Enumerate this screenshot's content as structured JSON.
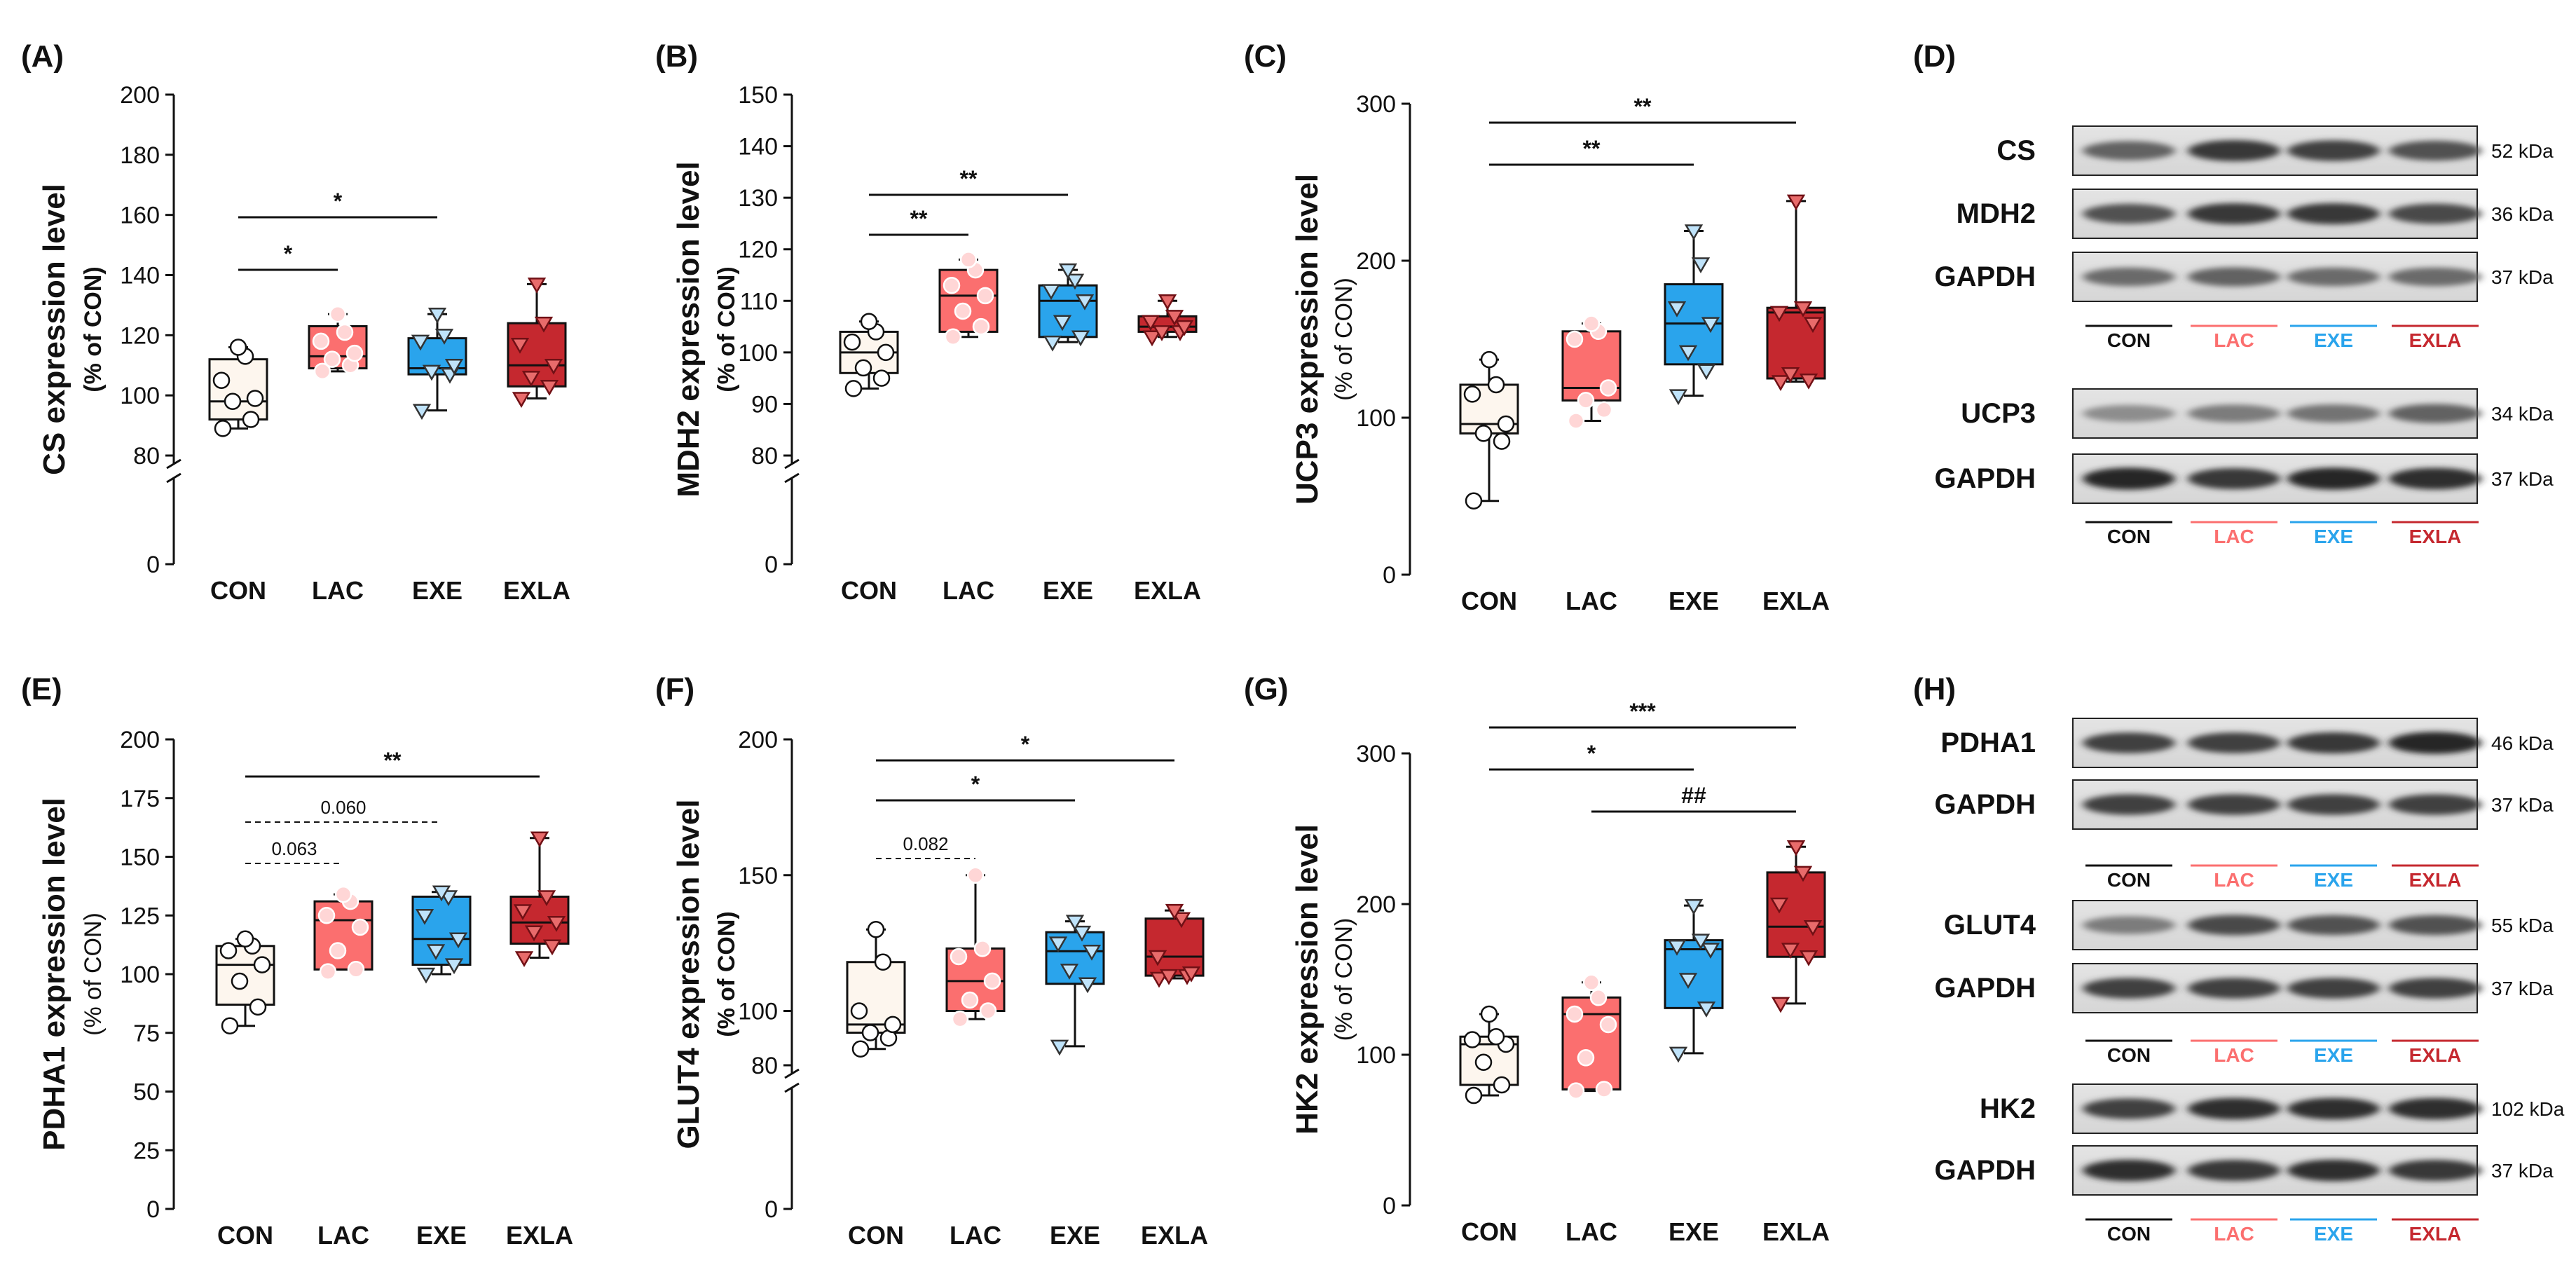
{
  "colors": {
    "CON": "#FDF6EE",
    "LAC": "#FB6F6F",
    "EXE": "#2AA4EC",
    "EXLA": "#C5282F"
  },
  "groups": [
    "CON",
    "LAC",
    "EXE",
    "EXLA"
  ],
  "chart_data": [
    {
      "type": "box",
      "panel": "(A)",
      "ylabel": "CS expression level",
      "ylabel2": "(% of CON)",
      "ylim": [
        0,
        200
      ],
      "yticks": [
        0,
        80,
        100,
        120,
        140,
        160,
        180,
        200
      ],
      "axis_break": [
        0,
        80
      ],
      "categories": [
        "CON",
        "LAC",
        "EXE",
        "EXLA"
      ],
      "boxes": [
        {
          "min": 89,
          "q1": 92,
          "median": 98,
          "q3": 112,
          "max": 116
        },
        {
          "min": 108,
          "q1": 109,
          "median": 113,
          "q3": 123,
          "max": 127
        },
        {
          "min": 95,
          "q1": 107,
          "median": 109,
          "q3": 119,
          "max": 127
        },
        {
          "min": 99,
          "q1": 103,
          "median": 110,
          "q3": 124,
          "max": 137
        }
      ],
      "points": [
        [
          89,
          92,
          98,
          99,
          105,
          113,
          116
        ],
        [
          108,
          110,
          112,
          114,
          118,
          121,
          127
        ],
        [
          95,
          107,
          108,
          110,
          118,
          120,
          127
        ],
        [
          99,
          103,
          106,
          110,
          117,
          124,
          137
        ]
      ],
      "brackets": [
        {
          "from": 0,
          "to": 1,
          "label": "*",
          "dashed": false
        },
        {
          "from": 0,
          "to": 2,
          "label": "*",
          "dashed": false
        }
      ]
    },
    {
      "type": "box",
      "panel": "(B)",
      "ylabel": "MDH2 expression level",
      "ylabel2": "(% of CON)",
      "ylim": [
        0,
        150
      ],
      "yticks": [
        0,
        80,
        90,
        100,
        110,
        120,
        130,
        140,
        150
      ],
      "axis_break": [
        0,
        80
      ],
      "categories": [
        "CON",
        "LAC",
        "EXE",
        "EXLA"
      ],
      "boxes": [
        {
          "min": 93,
          "q1": 96,
          "median": 100,
          "q3": 104,
          "max": 106
        },
        {
          "min": 103,
          "q1": 104,
          "median": 111,
          "q3": 116,
          "max": 118
        },
        {
          "min": 102,
          "q1": 103,
          "median": 110,
          "q3": 113,
          "max": 116
        },
        {
          "min": 103,
          "q1": 104,
          "median": 105,
          "q3": 107,
          "max": 110
        }
      ],
      "points": [
        [
          93,
          95,
          97,
          100,
          102,
          104,
          106
        ],
        [
          103,
          105,
          108,
          111,
          113,
          116,
          118
        ],
        [
          102,
          103,
          106,
          110,
          112,
          114,
          116
        ],
        [
          103,
          104,
          104,
          105,
          106,
          107,
          110
        ]
      ],
      "brackets": [
        {
          "from": 0,
          "to": 1,
          "label": "**",
          "dashed": false
        },
        {
          "from": 0,
          "to": 2,
          "label": "**",
          "dashed": false
        }
      ]
    },
    {
      "type": "box",
      "panel": "(C)",
      "ylabel": "UCP3 expression level",
      "ylabel2": "(% of CON)",
      "ylim": [
        0,
        300
      ],
      "yticks": [
        0,
        100,
        200,
        300
      ],
      "axis_break": null,
      "categories": [
        "CON",
        "LAC",
        "EXE",
        "EXLA"
      ],
      "boxes": [
        {
          "min": 47,
          "q1": 90,
          "median": 96,
          "q3": 121,
          "max": 137
        },
        {
          "min": 98,
          "q1": 111,
          "median": 119,
          "q3": 155,
          "max": 160
        },
        {
          "min": 114,
          "q1": 134,
          "median": 160,
          "q3": 185,
          "max": 219
        },
        {
          "min": 123,
          "q1": 125,
          "median": 167,
          "q3": 170,
          "max": 238
        }
      ],
      "points": [
        [
          47,
          85,
          90,
          96,
          115,
          121,
          137
        ],
        [
          98,
          105,
          111,
          119,
          150,
          155,
          160
        ],
        [
          114,
          130,
          142,
          160,
          170,
          198,
          219
        ],
        [
          123,
          124,
          128,
          160,
          167,
          170,
          238
        ]
      ],
      "brackets": [
        {
          "from": 0,
          "to": 2,
          "label": "**",
          "dashed": false
        },
        {
          "from": 0,
          "to": 3,
          "label": "**",
          "dashed": false
        }
      ]
    },
    {
      "type": "box",
      "panel": "(E)",
      "ylabel": "PDHA1 expression level",
      "ylabel2": "(% of CON)",
      "ylim": [
        0,
        200
      ],
      "yticks": [
        0,
        25,
        50,
        75,
        100,
        125,
        150,
        175,
        200
      ],
      "axis_break": null,
      "categories": [
        "CON",
        "LAC",
        "EXE",
        "EXLA"
      ],
      "boxes": [
        {
          "min": 78,
          "q1": 87,
          "median": 104,
          "q3": 112,
          "max": 115
        },
        {
          "min": 102,
          "q1": 102,
          "median": 123,
          "q3": 131,
          "max": 134
        },
        {
          "min": 100,
          "q1": 104,
          "median": 115,
          "q3": 133,
          "max": 135
        },
        {
          "min": 107,
          "q1": 113,
          "median": 122,
          "q3": 133,
          "max": 158
        }
      ],
      "points": [
        [
          78,
          86,
          97,
          104,
          110,
          112,
          115
        ],
        [
          101,
          102,
          110,
          120,
          125,
          131,
          134
        ],
        [
          100,
          104,
          110,
          115,
          125,
          133,
          135
        ],
        [
          107,
          112,
          118,
          122,
          127,
          133,
          158
        ]
      ],
      "brackets": [
        {
          "from": 0,
          "to": 3,
          "label": "**",
          "dashed": false
        },
        {
          "from": 0,
          "to": 2,
          "label": "0.060",
          "dashed": true
        },
        {
          "from": 0,
          "to": 1,
          "label": "0.063",
          "dashed": true
        }
      ]
    },
    {
      "type": "box",
      "panel": "(F)",
      "ylabel": "GLUT4 expression level",
      "ylabel2": "(% of CON)",
      "ylim": [
        0,
        200
      ],
      "yticks": [
        0,
        80,
        100,
        150,
        200
      ],
      "axis_break": [
        0,
        80
      ],
      "categories": [
        "CON",
        "LAC",
        "EXE",
        "EXLA"
      ],
      "boxes": [
        {
          "min": 86,
          "q1": 92,
          "median": 95,
          "q3": 118,
          "max": 130
        },
        {
          "min": 97,
          "q1": 100,
          "median": 111,
          "q3": 123,
          "max": 150
        },
        {
          "min": 87,
          "q1": 110,
          "median": 122,
          "q3": 129,
          "max": 133
        },
        {
          "min": 112,
          "q1": 113,
          "median": 120,
          "q3": 134,
          "max": 137
        }
      ],
      "points": [
        [
          86,
          90,
          92,
          95,
          100,
          118,
          130
        ],
        [
          97,
          100,
          104,
          111,
          120,
          123,
          150
        ],
        [
          87,
          110,
          115,
          122,
          125,
          129,
          133
        ],
        [
          112,
          113,
          113,
          114,
          120,
          134,
          137
        ]
      ],
      "brackets": [
        {
          "from": 0,
          "to": 3,
          "label": "*",
          "dashed": false
        },
        {
          "from": 0,
          "to": 2,
          "label": "*",
          "dashed": false
        },
        {
          "from": 0,
          "to": 1,
          "label": "0.082",
          "dashed": true
        }
      ]
    },
    {
      "type": "box",
      "panel": "(G)",
      "ylabel": "HK2 expression level",
      "ylabel2": "(% of CON)",
      "ylim": [
        0,
        300
      ],
      "yticks": [
        0,
        100,
        200,
        300
      ],
      "axis_break": null,
      "categories": [
        "CON",
        "LAC",
        "EXE",
        "EXLA"
      ],
      "boxes": [
        {
          "min": 73,
          "q1": 80,
          "median": 107,
          "q3": 112,
          "max": 127
        },
        {
          "min": 76,
          "q1": 77,
          "median": 127,
          "q3": 138,
          "max": 148
        },
        {
          "min": 101,
          "q1": 131,
          "median": 170,
          "q3": 176,
          "max": 199
        },
        {
          "min": 134,
          "q1": 165,
          "median": 185,
          "q3": 221,
          "max": 238
        }
      ],
      "points": [
        [
          73,
          80,
          95,
          107,
          110,
          112,
          127
        ],
        [
          76,
          77,
          98,
          120,
          127,
          138,
          148
        ],
        [
          101,
          131,
          150,
          170,
          172,
          176,
          199
        ],
        [
          134,
          165,
          170,
          185,
          200,
          221,
          238
        ]
      ],
      "brackets": [
        {
          "from": 0,
          "to": 3,
          "label": "***",
          "dashed": false
        },
        {
          "from": 0,
          "to": 2,
          "label": "*",
          "dashed": false
        },
        {
          "from": 1,
          "to": 3,
          "label": "##",
          "dashed": false
        }
      ]
    }
  ],
  "blots": [
    {
      "panel": "(D)",
      "bands": [
        {
          "protein": "CS",
          "kda": "52 kDa",
          "intensity": [
            0.6,
            0.85,
            0.8,
            0.7
          ]
        },
        {
          "protein": "MDH2",
          "kda": "36 kDa",
          "intensity": [
            0.7,
            0.85,
            0.85,
            0.75
          ]
        },
        {
          "protein": "GAPDH",
          "kda": "37 kDa",
          "intensity": [
            0.55,
            0.6,
            0.55,
            0.55
          ]
        },
        {
          "protein": "UCP3",
          "kda": "34 kDa",
          "intensity": [
            0.35,
            0.45,
            0.5,
            0.6
          ]
        },
        {
          "protein": "GAPDH",
          "kda": "37 kDa",
          "intensity": [
            0.95,
            0.85,
            0.95,
            0.9
          ]
        }
      ],
      "lane_sets": [
        {
          "after_band": 2,
          "lanes": [
            "CON",
            "LAC",
            "EXE",
            "EXLA"
          ]
        },
        {
          "after_band": 4,
          "lanes": [
            "CON",
            "LAC",
            "EXE",
            "EXLA"
          ]
        }
      ]
    },
    {
      "panel": "(H)",
      "bands": [
        {
          "protein": "PDHA1",
          "kda": "46 kDa",
          "intensity": [
            0.8,
            0.8,
            0.85,
            0.95
          ]
        },
        {
          "protein": "GAPDH",
          "kda": "37 kDa",
          "intensity": [
            0.8,
            0.8,
            0.8,
            0.8
          ]
        },
        {
          "protein": "GLUT4",
          "kda": "55 kDa",
          "intensity": [
            0.45,
            0.75,
            0.7,
            0.7
          ]
        },
        {
          "protein": "GAPDH",
          "kda": "37 kDa",
          "intensity": [
            0.8,
            0.8,
            0.8,
            0.8
          ]
        },
        {
          "protein": "HK2",
          "kda": "102 kDa",
          "intensity": [
            0.8,
            0.9,
            0.9,
            0.9
          ]
        },
        {
          "protein": "GAPDH",
          "kda": "37 kDa",
          "intensity": [
            0.9,
            0.85,
            0.9,
            0.85
          ]
        }
      ],
      "lane_sets": [
        {
          "after_band": 1,
          "lanes": [
            "CON",
            "LAC",
            "EXE",
            "EXLA"
          ]
        },
        {
          "after_band": 3,
          "lanes": [
            "CON",
            "LAC",
            "EXE",
            "EXLA"
          ]
        },
        {
          "after_band": 5,
          "lanes": [
            "CON",
            "LAC",
            "EXE",
            "EXLA"
          ]
        }
      ]
    }
  ]
}
